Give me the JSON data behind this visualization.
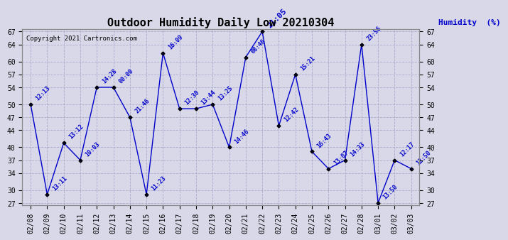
{
  "title": "Outdoor Humidity Daily Low 20210304",
  "ylabel": "Humidity  (%)",
  "copyright": "Copyright 2021 Cartronics.com",
  "line_color": "#0000cc",
  "marker_color": "#000000",
  "bg_color": "#d8d8e8",
  "grid_color": "#aaaacc",
  "dates": [
    "02/08",
    "02/09",
    "02/10",
    "02/11",
    "02/12",
    "02/13",
    "02/14",
    "02/15",
    "02/16",
    "02/17",
    "02/18",
    "02/19",
    "02/20",
    "02/21",
    "02/22",
    "02/23",
    "02/24",
    "02/25",
    "02/26",
    "02/27",
    "02/28",
    "03/01",
    "03/02",
    "03/03"
  ],
  "values": [
    50,
    29,
    41,
    37,
    54,
    54,
    47,
    29,
    62,
    49,
    49,
    50,
    40,
    61,
    67,
    45,
    57,
    39,
    35,
    37,
    64,
    27,
    37,
    35
  ],
  "time_labels": [
    "12:13",
    "13:11",
    "13:12",
    "10:03",
    "14:28",
    "00:00",
    "21:46",
    "11:23",
    "16:09",
    "12:30",
    "13:44",
    "13:25",
    "14:46",
    "08:46",
    "21:05",
    "12:42",
    "15:21",
    "16:43",
    "13:07",
    "14:33",
    "23:56",
    "13:50",
    "12:17",
    "12:50"
  ],
  "peak_label_idx": 14,
  "yticks": [
    27,
    30,
    34,
    37,
    40,
    44,
    47,
    50,
    54,
    57,
    60,
    64,
    67
  ],
  "ylim": [
    27,
    67
  ],
  "title_fontsize": 11,
  "tick_fontsize": 7,
  "anno_fontsize": 6,
  "peak_fontsize": 8,
  "copyright_fontsize": 6.5,
  "ylabel_fontsize": 8
}
